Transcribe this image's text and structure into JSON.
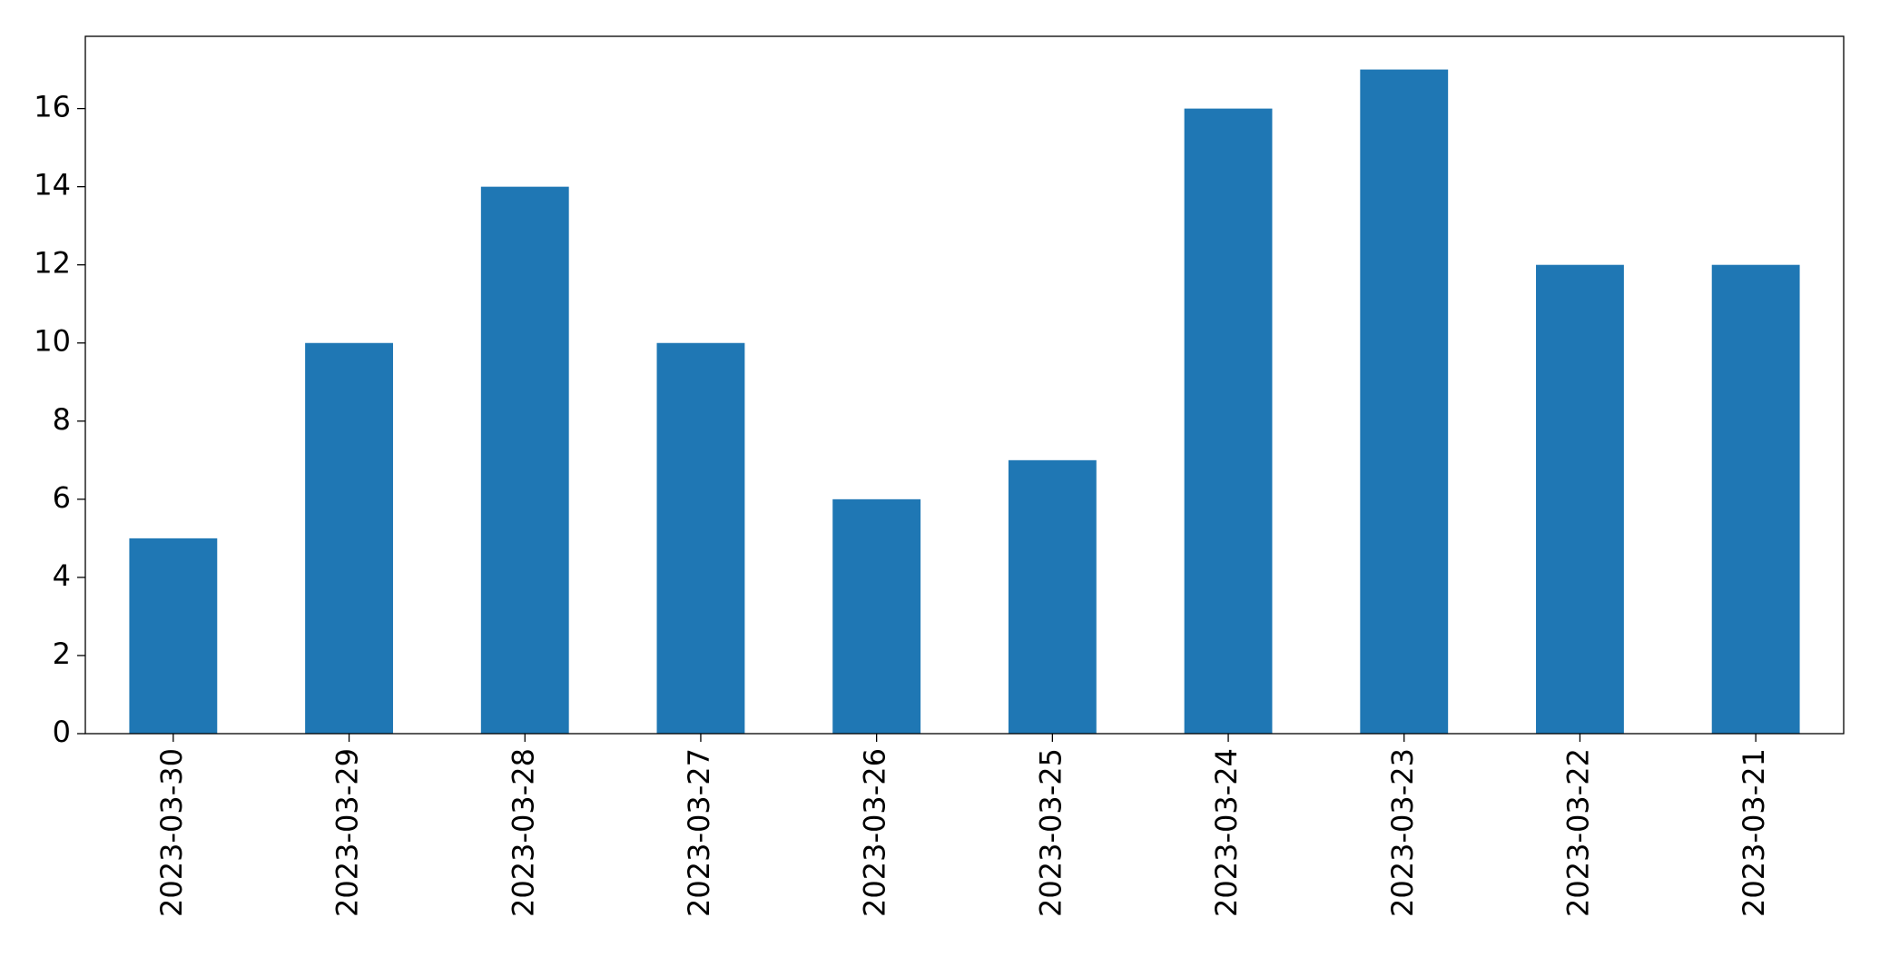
{
  "chart_data": {
    "type": "bar",
    "categories": [
      "2023-03-30",
      "2023-03-29",
      "2023-03-28",
      "2023-03-27",
      "2023-03-26",
      "2023-03-25",
      "2023-03-24",
      "2023-03-23",
      "2023-03-22",
      "2023-03-21"
    ],
    "values": [
      5,
      10,
      14,
      10,
      6,
      7,
      16,
      17,
      12,
      12
    ],
    "color": "#1f77b4",
    "ylim": [
      0,
      17.85
    ],
    "yticks": [
      0,
      2,
      4,
      6,
      8,
      10,
      12,
      14,
      16
    ],
    "grid": false
  }
}
